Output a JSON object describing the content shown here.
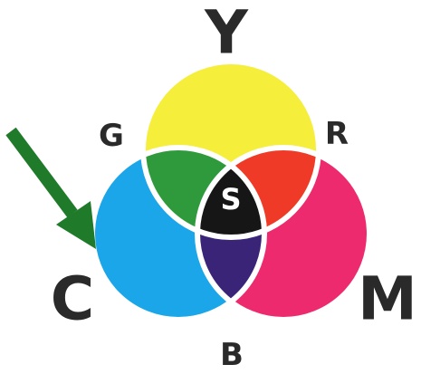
{
  "labels": {
    "top": "Y",
    "upper_left": "G",
    "upper_right": "R",
    "center": "S",
    "left": "C",
    "right": "M",
    "bottom": "B"
  }
}
